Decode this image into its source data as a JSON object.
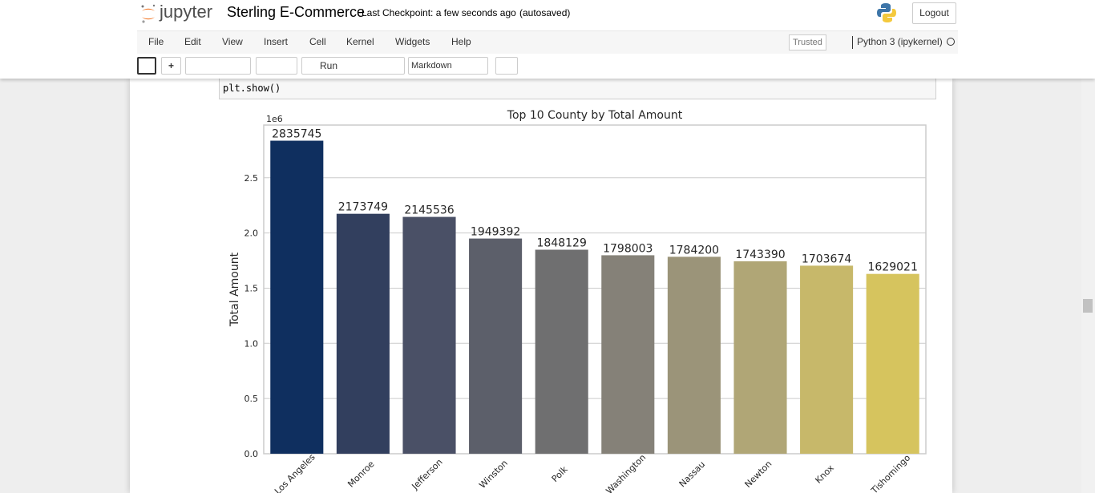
{
  "header": {
    "logo": "jupyter",
    "notebook_name": "Sterling E-Commerce",
    "checkpoint": "Last Checkpoint: a few seconds ago",
    "autosave": "(autosaved)",
    "logout": "Logout"
  },
  "menu": {
    "items": [
      "File",
      "Edit",
      "View",
      "Insert",
      "Cell",
      "Kernel",
      "Widgets",
      "Help"
    ],
    "trusted": "Trusted",
    "kernel": "Python 3 (ipykernel)"
  },
  "toolbar": {
    "run": "Run",
    "cell_type": "Markdown"
  },
  "cell": {
    "code": "plt.show()"
  },
  "chart_data": {
    "type": "bar",
    "title": "Top 10 County by Total Amount",
    "ylabel": "Total Amount",
    "y_offset": "1e6",
    "categories": [
      "Los Angeles",
      "Monroe",
      "Jefferson",
      "Winston",
      "Polk",
      "Washington",
      "Nassau",
      "Newton",
      "Knox",
      "Tishomingo"
    ],
    "values": [
      2835745,
      2173749,
      2145536,
      1949392,
      1848129,
      1798003,
      1784200,
      1743390,
      1703674,
      1629021
    ],
    "colors": [
      "#0f2f5f",
      "#323f5e",
      "#4a5066",
      "#5c5f6a",
      "#6f6f70",
      "#858178",
      "#9b9479",
      "#b0a676",
      "#c7b86a",
      "#d6c45e"
    ],
    "ylim": [
      0,
      2977532
    ],
    "yticks": [
      {
        "value": 0,
        "label": "0.0"
      },
      {
        "value": 500000,
        "label": "0.5"
      },
      {
        "value": 1000000,
        "label": "1.0"
      },
      {
        "value": 1500000,
        "label": "1.5"
      },
      {
        "value": 2000000,
        "label": "2.0"
      },
      {
        "value": 2500000,
        "label": "2.5"
      }
    ],
    "grid": true
  }
}
